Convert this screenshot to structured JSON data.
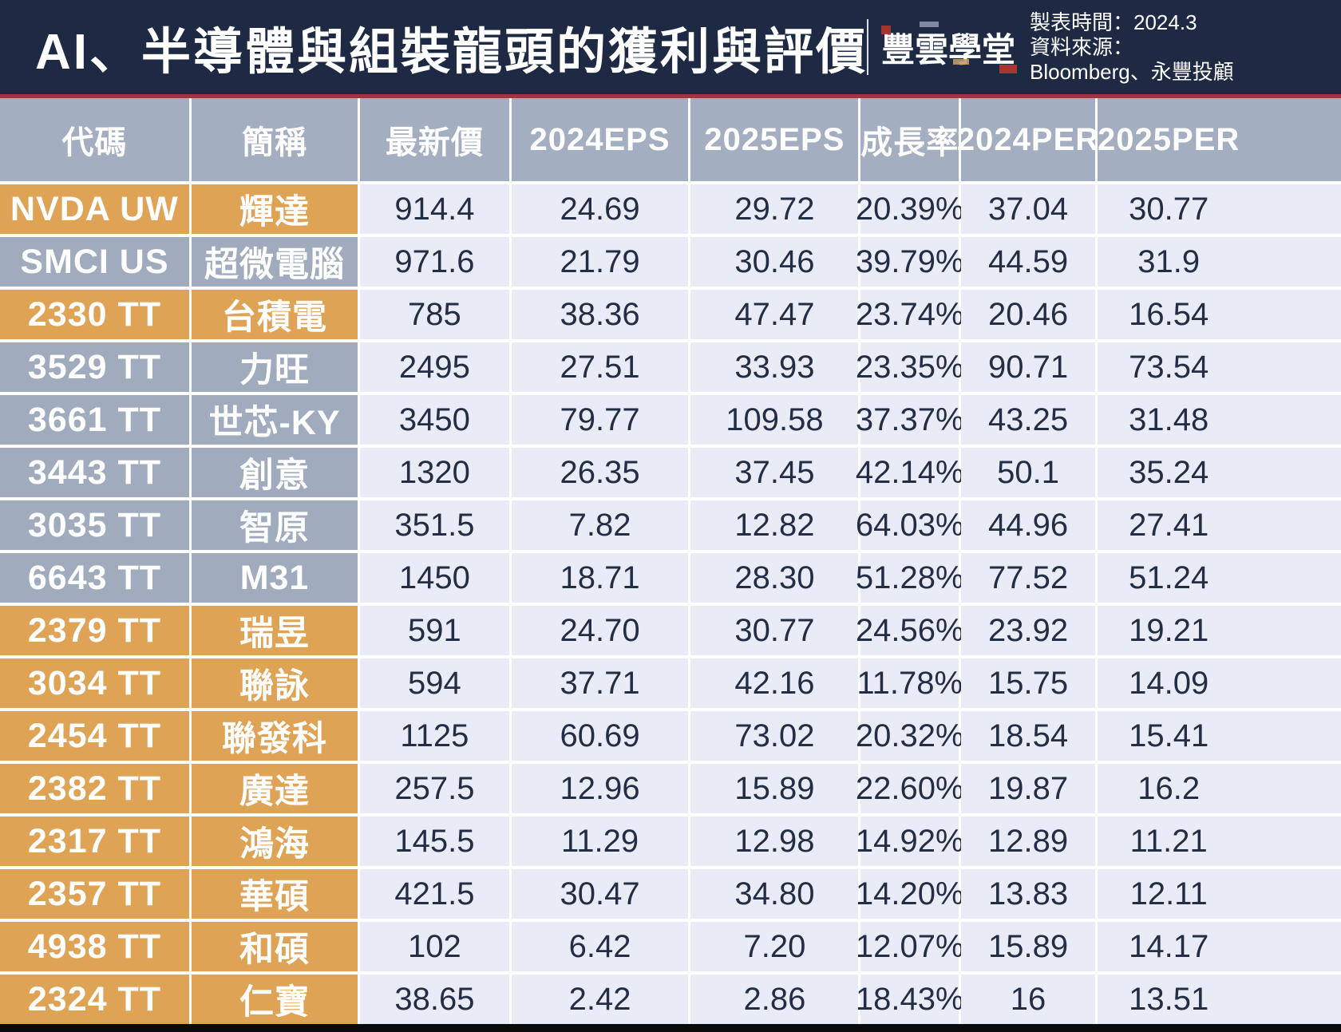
{
  "header": {
    "title": "AI、半導體與組裝龍頭的獲利與評價",
    "logo_text": "豐雲學堂",
    "meta_line1": "製表時間：2024.3",
    "meta_line2": "資料來源：",
    "meta_line3": "Bloomberg、永豐投顧"
  },
  "chart_data": {
    "type": "table",
    "title": "AI、半導體與組裝龍頭的獲利與評價",
    "columns": [
      "代碼",
      "簡稱",
      "最新價",
      "2024EPS",
      "2025EPS",
      "成長率",
      "2024PER",
      "2025PER"
    ],
    "rows": [
      {
        "code": "NVDA UW",
        "name": "輝達",
        "group": "orange",
        "values": [
          "914.4",
          "24.69",
          "29.72",
          "20.39%",
          "37.04",
          "30.77"
        ]
      },
      {
        "code": "SMCI US",
        "name": "超微電腦",
        "group": "gray",
        "values": [
          "971.6",
          "21.79",
          "30.46",
          "39.79%",
          "44.59",
          "31.9"
        ]
      },
      {
        "code": "2330 TT",
        "name": "台積電",
        "group": "orange",
        "values": [
          "785",
          "38.36",
          "47.47",
          "23.74%",
          "20.46",
          "16.54"
        ]
      },
      {
        "code": "3529 TT",
        "name": "力旺",
        "group": "gray",
        "values": [
          "2495",
          "27.51",
          "33.93",
          "23.35%",
          "90.71",
          "73.54"
        ]
      },
      {
        "code": "3661 TT",
        "name": "世芯-KY",
        "group": "gray",
        "values": [
          "3450",
          "79.77",
          "109.58",
          "37.37%",
          "43.25",
          "31.48"
        ]
      },
      {
        "code": "3443 TT",
        "name": "創意",
        "group": "gray",
        "values": [
          "1320",
          "26.35",
          "37.45",
          "42.14%",
          "50.1",
          "35.24"
        ]
      },
      {
        "code": "3035 TT",
        "name": "智原",
        "group": "gray",
        "values": [
          "351.5",
          "7.82",
          "12.82",
          "64.03%",
          "44.96",
          "27.41"
        ]
      },
      {
        "code": "6643 TT",
        "name": "M31",
        "group": "gray",
        "values": [
          "1450",
          "18.71",
          "28.30",
          "51.28%",
          "77.52",
          "51.24"
        ]
      },
      {
        "code": "2379 TT",
        "name": "瑞昱",
        "group": "orange",
        "values": [
          "591",
          "24.70",
          "30.77",
          "24.56%",
          "23.92",
          "19.21"
        ]
      },
      {
        "code": "3034 TT",
        "name": "聯詠",
        "group": "orange",
        "values": [
          "594",
          "37.71",
          "42.16",
          "11.78%",
          "15.75",
          "14.09"
        ]
      },
      {
        "code": "2454 TT",
        "name": "聯發科",
        "group": "orange",
        "values": [
          "1125",
          "60.69",
          "73.02",
          "20.32%",
          "18.54",
          "15.41"
        ]
      },
      {
        "code": "2382 TT",
        "name": "廣達",
        "group": "orange",
        "values": [
          "257.5",
          "12.96",
          "15.89",
          "22.60%",
          "19.87",
          "16.2"
        ]
      },
      {
        "code": "2317 TT",
        "name": "鴻海",
        "group": "orange",
        "values": [
          "145.5",
          "11.29",
          "12.98",
          "14.92%",
          "12.89",
          "11.21"
        ]
      },
      {
        "code": "2357 TT",
        "name": "華碩",
        "group": "orange",
        "values": [
          "421.5",
          "30.47",
          "34.80",
          "14.20%",
          "13.83",
          "12.11"
        ]
      },
      {
        "code": "4938 TT",
        "name": "和碩",
        "group": "orange",
        "values": [
          "102",
          "6.42",
          "7.20",
          "12.07%",
          "15.89",
          "14.17"
        ]
      },
      {
        "code": "2324 TT",
        "name": "仁寶",
        "group": "orange",
        "values": [
          "38.65",
          "2.42",
          "2.86",
          "18.43%",
          "16",
          "13.51"
        ]
      }
    ]
  },
  "colors": {
    "background_navy": "#1E2A44",
    "accent_red_line": "#963A3E",
    "header_gray_blue": "#A4AEC1",
    "row_label_gray": "#A0ABBE",
    "row_label_orange": "#DFA355",
    "cell_light": "#E9ECF7",
    "value_text": "#232E45",
    "bottom_bar": "#0B0B0D"
  }
}
